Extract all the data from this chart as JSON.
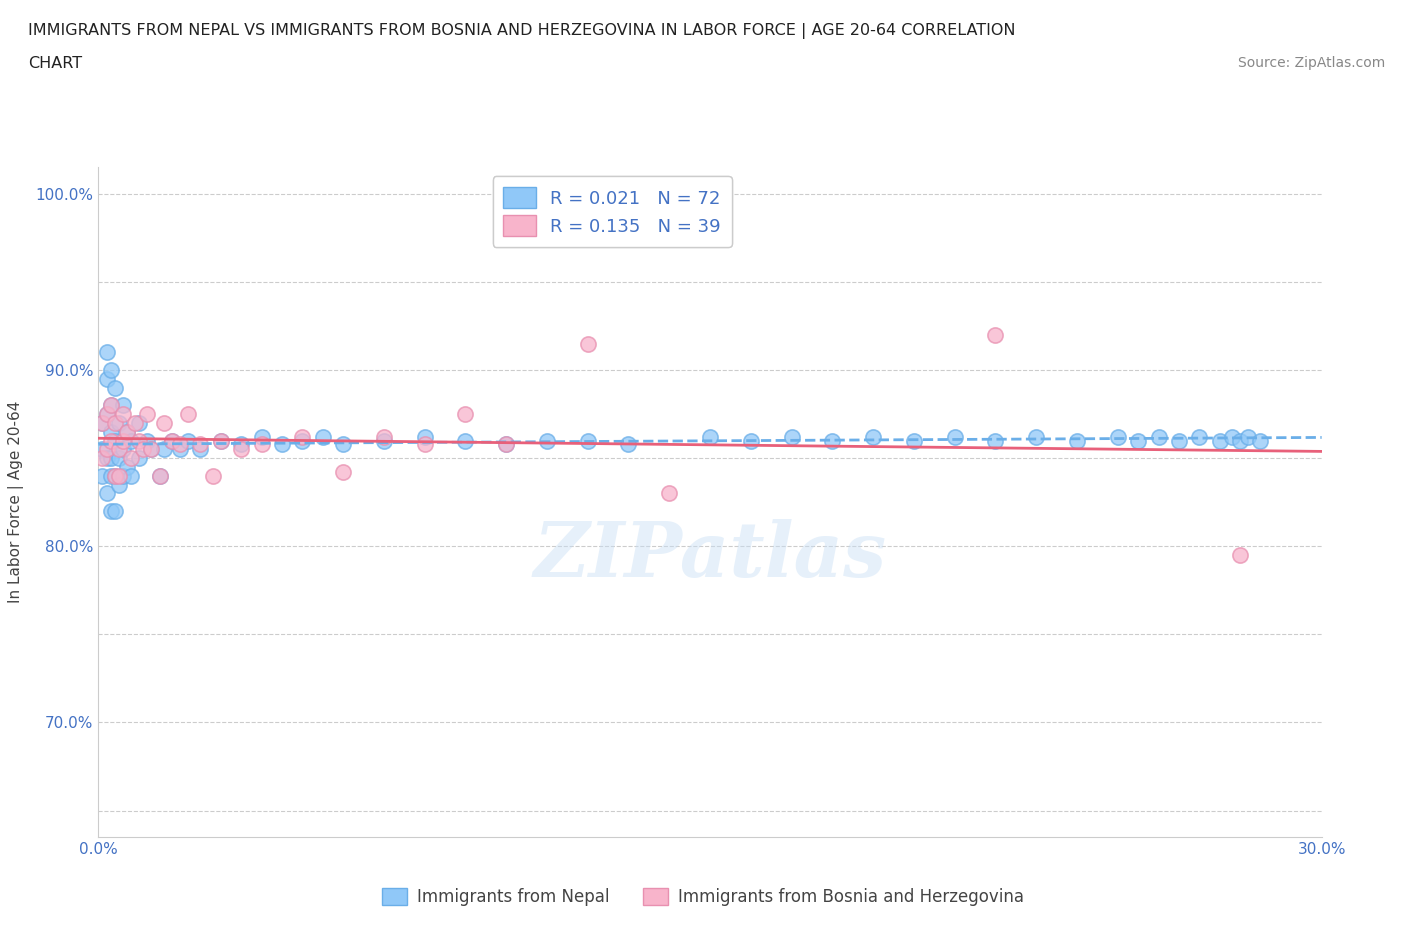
{
  "title_line1": "IMMIGRANTS FROM NEPAL VS IMMIGRANTS FROM BOSNIA AND HERZEGOVINA IN LABOR FORCE | AGE 20-64 CORRELATION",
  "title_line2": "CHART",
  "source_text": "Source: ZipAtlas.com",
  "ylabel": "In Labor Force | Age 20-64",
  "xlim": [
    0.0,
    0.3
  ],
  "ylim": [
    0.635,
    1.015
  ],
  "nepal_color": "#90C8F8",
  "nepal_edge_color": "#6aaee8",
  "bosnia_color": "#F8B4CB",
  "bosnia_edge_color": "#e890b0",
  "nepal_trend_color": "#6aaee8",
  "bosnia_trend_color": "#e8607a",
  "nepal_R": 0.021,
  "nepal_N": 72,
  "bosnia_R": 0.135,
  "bosnia_N": 39,
  "nepal_x": [
    0.001,
    0.001,
    0.001,
    0.002,
    0.002,
    0.002,
    0.002,
    0.002,
    0.003,
    0.003,
    0.003,
    0.003,
    0.003,
    0.003,
    0.004,
    0.004,
    0.004,
    0.004,
    0.005,
    0.005,
    0.005,
    0.006,
    0.006,
    0.006,
    0.007,
    0.007,
    0.008,
    0.008,
    0.01,
    0.01,
    0.012,
    0.013,
    0.015,
    0.016,
    0.018,
    0.02,
    0.022,
    0.025,
    0.03,
    0.035,
    0.04,
    0.045,
    0.05,
    0.055,
    0.06,
    0.07,
    0.08,
    0.09,
    0.1,
    0.11,
    0.12,
    0.13,
    0.15,
    0.16,
    0.17,
    0.18,
    0.19,
    0.2,
    0.21,
    0.22,
    0.23,
    0.24,
    0.25,
    0.255,
    0.26,
    0.265,
    0.27,
    0.275,
    0.278,
    0.28,
    0.282,
    0.285
  ],
  "nepal_y": [
    0.855,
    0.87,
    0.84,
    0.91,
    0.875,
    0.85,
    0.895,
    0.83,
    0.88,
    0.865,
    0.85,
    0.82,
    0.9,
    0.84,
    0.89,
    0.86,
    0.84,
    0.82,
    0.87,
    0.85,
    0.835,
    0.88,
    0.855,
    0.84,
    0.865,
    0.845,
    0.86,
    0.84,
    0.87,
    0.85,
    0.86,
    0.855,
    0.84,
    0.855,
    0.86,
    0.855,
    0.86,
    0.855,
    0.86,
    0.858,
    0.862,
    0.858,
    0.86,
    0.862,
    0.858,
    0.86,
    0.862,
    0.86,
    0.858,
    0.86,
    0.86,
    0.858,
    0.862,
    0.86,
    0.862,
    0.86,
    0.862,
    0.86,
    0.862,
    0.86,
    0.862,
    0.86,
    0.862,
    0.86,
    0.862,
    0.86,
    0.862,
    0.86,
    0.862,
    0.86,
    0.862,
    0.86
  ],
  "bosnia_x": [
    0.001,
    0.001,
    0.002,
    0.002,
    0.003,
    0.003,
    0.004,
    0.004,
    0.005,
    0.005,
    0.006,
    0.006,
    0.007,
    0.008,
    0.009,
    0.01,
    0.011,
    0.012,
    0.013,
    0.015,
    0.016,
    0.018,
    0.02,
    0.022,
    0.025,
    0.028,
    0.03,
    0.035,
    0.04,
    0.05,
    0.06,
    0.07,
    0.08,
    0.09,
    0.1,
    0.12,
    0.14,
    0.22,
    0.28
  ],
  "bosnia_y": [
    0.85,
    0.87,
    0.855,
    0.875,
    0.86,
    0.88,
    0.84,
    0.87,
    0.855,
    0.84,
    0.875,
    0.86,
    0.865,
    0.85,
    0.87,
    0.86,
    0.855,
    0.875,
    0.855,
    0.84,
    0.87,
    0.86,
    0.858,
    0.875,
    0.858,
    0.84,
    0.86,
    0.855,
    0.858,
    0.862,
    0.842,
    0.862,
    0.858,
    0.875,
    0.858,
    0.915,
    0.83,
    0.92,
    0.795
  ],
  "watermark_text": "ZIPatlas",
  "background_color": "#ffffff",
  "grid_color": "#cccccc",
  "grid_linestyle": "--"
}
